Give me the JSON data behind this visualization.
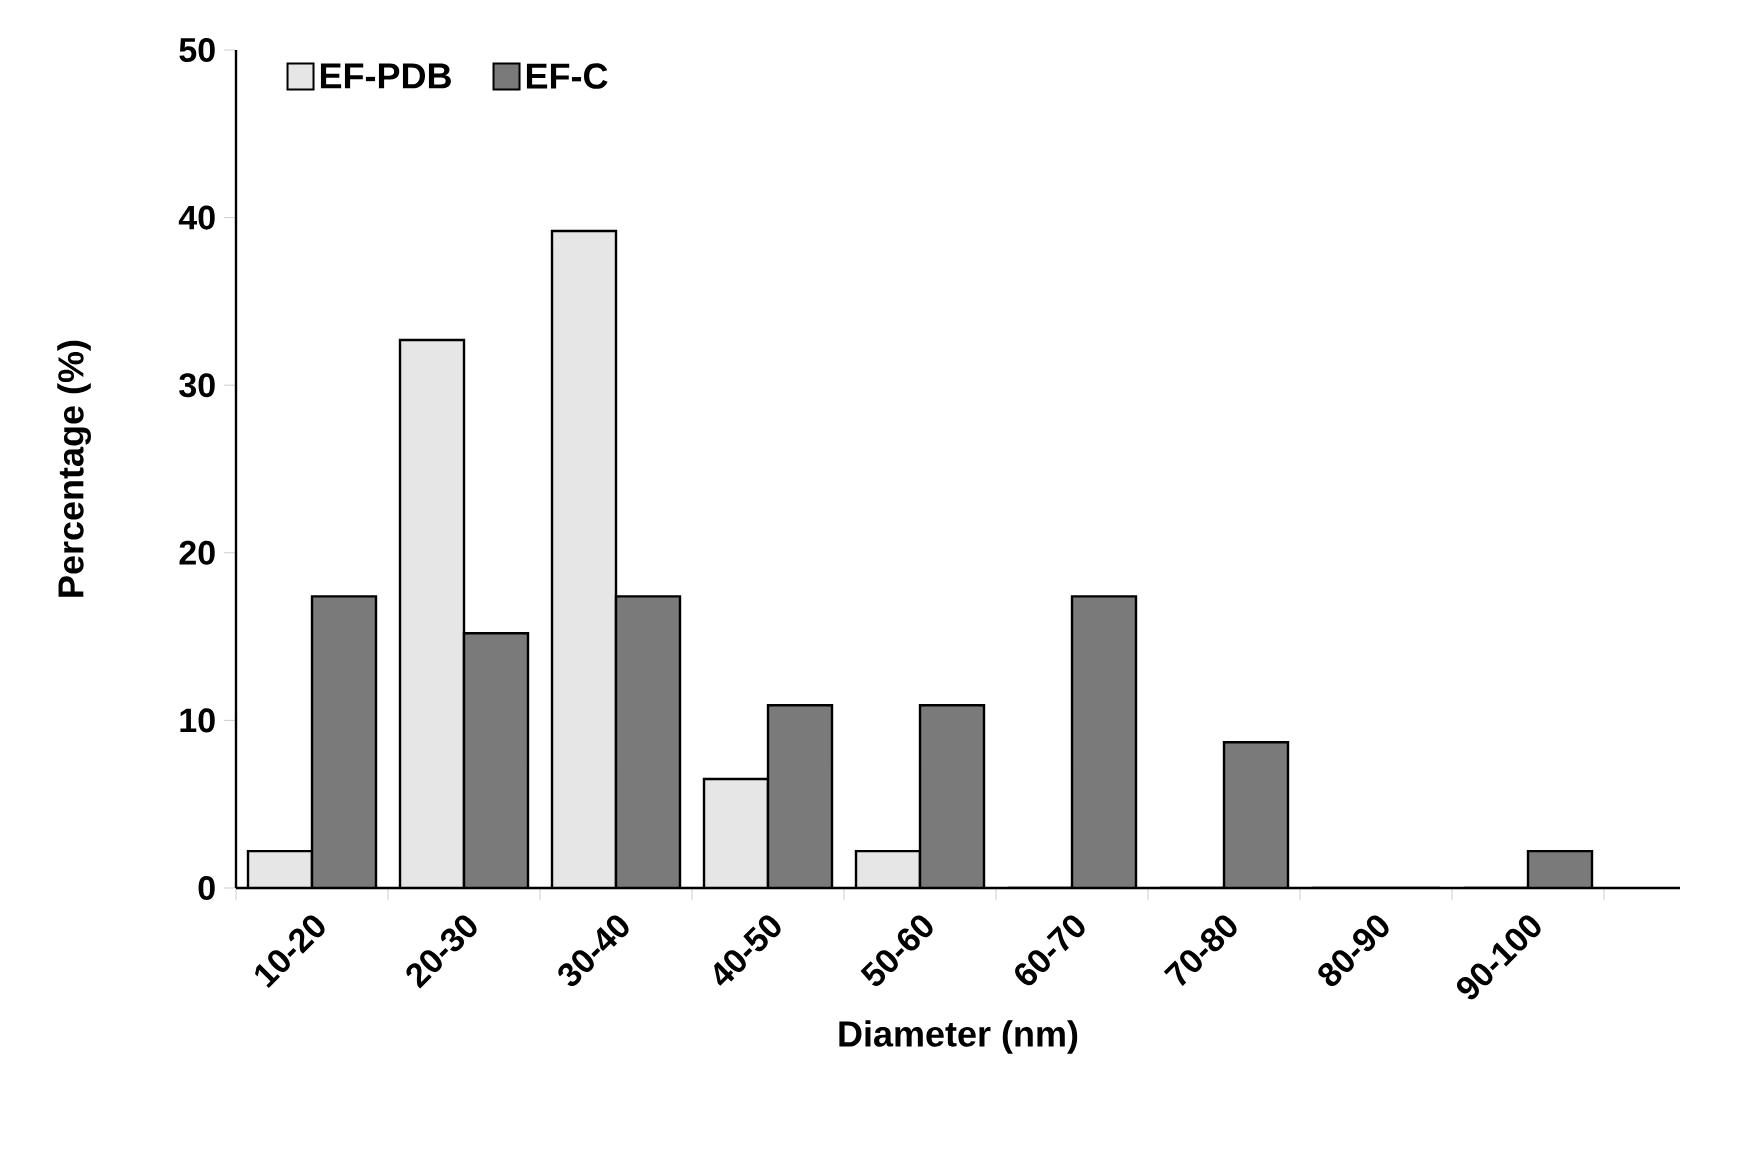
{
  "chart_data": {
    "type": "bar",
    "xlabel": "Diameter (nm)",
    "ylabel": "Percentage (%)",
    "categories": [
      "10-20",
      "20-30",
      "30-40",
      "40-50",
      "50-60",
      "60-70",
      "70-80",
      "80-90",
      "90-100"
    ],
    "series": [
      {
        "name": "EF-PDB",
        "color": "#e6e6e6",
        "values": [
          2.2,
          32.7,
          39.2,
          6.5,
          2.2,
          0,
          0,
          0,
          0
        ]
      },
      {
        "name": "EF-C",
        "color": "#7a7a7a",
        "values": [
          17.4,
          15.2,
          17.4,
          10.9,
          10.9,
          17.4,
          8.7,
          0,
          2.2
        ]
      }
    ],
    "ylim": [
      0,
      50
    ],
    "yticks": [
      0,
      10,
      20,
      30,
      40,
      50
    ],
    "grid": false,
    "legend": "top left"
  }
}
